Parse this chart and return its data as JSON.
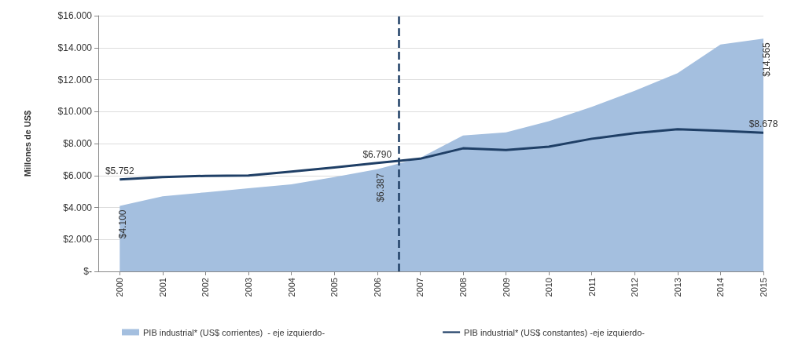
{
  "chart_data": {
    "type": "area",
    "ylabel": "Millones de US$",
    "x": [
      2000,
      2001,
      2002,
      2003,
      2004,
      2005,
      2006,
      2007,
      2008,
      2009,
      2010,
      2011,
      2012,
      2013,
      2014,
      2015
    ],
    "series": [
      {
        "name": "PIB industrial* (US$ corrientes)  - eje izquierdo-",
        "color": "#a4bfdf",
        "values": [
          4100,
          4700,
          4950,
          5200,
          5450,
          5900,
          6387,
          7100,
          8500,
          8700,
          9400,
          10300,
          11300,
          12400,
          14200,
          14565
        ],
        "value_labels": [
          "$4.100",
          null,
          null,
          null,
          null,
          null,
          "$6.387",
          null,
          null,
          null,
          null,
          null,
          null,
          null,
          null,
          "$14.565"
        ]
      },
      {
        "name": "PIB industrial* (US$ constantes) -eje izquierdo-",
        "type": "line",
        "color": "#1f3f66",
        "values": [
          5752,
          5900,
          5980,
          6000,
          6250,
          6500,
          6790,
          7050,
          7700,
          7600,
          7800,
          8300,
          8650,
          8900,
          8800,
          8678
        ],
        "value_labels": [
          "$5.752",
          null,
          null,
          null,
          null,
          null,
          "$6.790",
          null,
          null,
          null,
          null,
          null,
          null,
          null,
          null,
          "$8.678"
        ]
      }
    ],
    "xlim": [
      1999.5,
      2015
    ],
    "xticks": [
      2000,
      2001,
      2002,
      2003,
      2004,
      2005,
      2006,
      2007,
      2008,
      2009,
      2010,
      2011,
      2012,
      2013,
      2014,
      2015
    ],
    "ylim": [
      0,
      16000
    ],
    "yticks": [
      {
        "value": 0,
        "label": "$-"
      },
      {
        "value": 2000,
        "label": "$2.000"
      },
      {
        "value": 4000,
        "label": "$4.000"
      },
      {
        "value": 6000,
        "label": "$6.000"
      },
      {
        "value": 8000,
        "label": "$8.000"
      },
      {
        "value": 10000,
        "label": "$10.000"
      },
      {
        "value": 12000,
        "label": "$12.000"
      },
      {
        "value": 14000,
        "label": "$14.000"
      },
      {
        "value": 16000,
        "label": "$16.000"
      }
    ],
    "ref_lines": [
      {
        "axis": "x",
        "value": 2006.5,
        "label": null,
        "color": "#1f3f66",
        "line_style": "dashed"
      }
    ],
    "grid": "y",
    "legend": "bottom",
    "marker": "none",
    "line_style": "solid"
  }
}
